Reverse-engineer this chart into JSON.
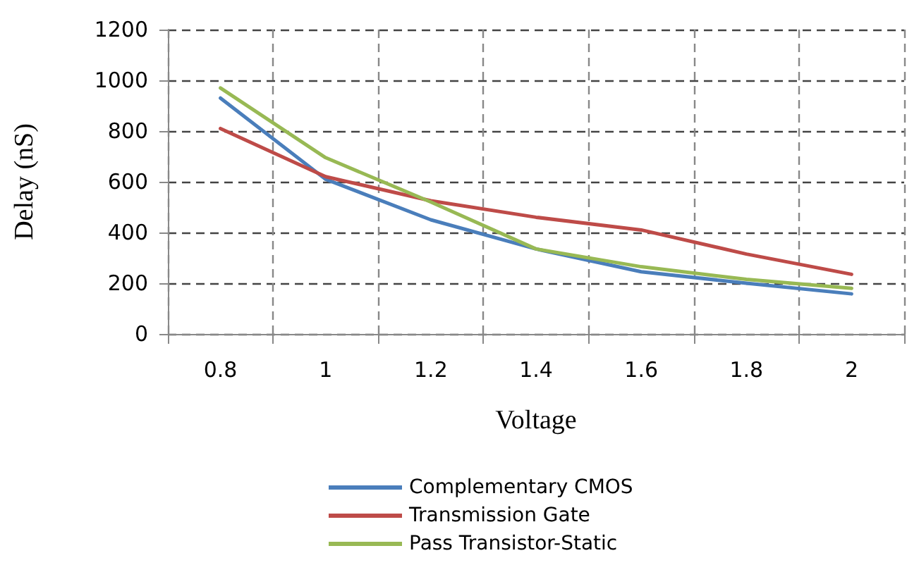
{
  "chart_data": {
    "type": "line",
    "xlabel": "Voltage",
    "ylabel": "Delay (nS)",
    "categories": [
      "0.8",
      "1",
      "1.2",
      "1.4",
      "1.6",
      "1.8",
      "2"
    ],
    "series": [
      {
        "name": "Complementary CMOS",
        "color": "#4a7ebb",
        "values": [
          930,
          610,
          450,
          335,
          245,
          200,
          158
        ]
      },
      {
        "name": "Transmission Gate",
        "color": "#be4b48",
        "values": [
          810,
          620,
          525,
          460,
          410,
          315,
          235
        ]
      },
      {
        "name": "Pass Transistor-Static",
        "color": "#98b954",
        "values": [
          970,
          695,
          520,
          335,
          265,
          215,
          180
        ]
      }
    ],
    "ylim": [
      0,
      1200
    ],
    "yticks": [
      0,
      200,
      400,
      600,
      800,
      1000,
      1200
    ],
    "grid": true,
    "legend": "bottom",
    "marker": "none",
    "line_style": "solid"
  }
}
